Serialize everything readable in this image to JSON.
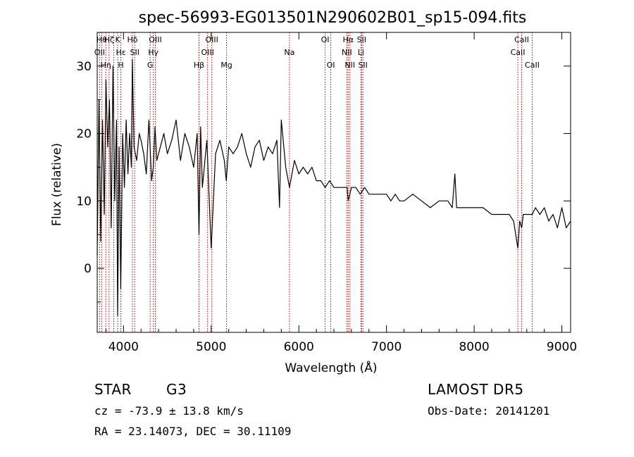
{
  "chart_data": {
    "type": "line",
    "title": "spec-56993-EG013501N290602B01_sp15-094.fits",
    "xlabel": "Wavelength (Å)",
    "ylabel": "Flux (relative)",
    "xlim": [
      3700,
      9100
    ],
    "ylim": [
      -9.5,
      35
    ],
    "xticks": [
      4000,
      5000,
      6000,
      7000,
      8000,
      9000
    ],
    "yticks": [
      0,
      10,
      20,
      30
    ],
    "series": [
      {
        "x": [
          3700,
          3720,
          3740,
          3760,
          3780,
          3800,
          3820,
          3840,
          3860,
          3880,
          3900,
          3920,
          3933,
          3950,
          3968,
          3990,
          4010,
          4030,
          4050,
          4070,
          4090,
          4101,
          4120,
          4150,
          4180,
          4200,
          4230,
          4260,
          4290,
          4320,
          4340,
          4360,
          4380,
          4420,
          4460,
          4500,
          4550,
          4600,
          4650,
          4700,
          4750,
          4800,
          4840,
          4861,
          4880,
          4900,
          4950,
          5000,
          5050,
          5100,
          5150,
          5172,
          5200,
          5250,
          5300,
          5350,
          5400,
          5450,
          5500,
          5550,
          5600,
          5650,
          5700,
          5750,
          5780,
          5800,
          5850,
          5893,
          5950,
          6000,
          6050,
          6100,
          6150,
          6200,
          6250,
          6300,
          6350,
          6400,
          6450,
          6500,
          6550,
          6563,
          6600,
          6650,
          6700,
          6750,
          6800,
          6850,
          6900,
          6950,
          7000,
          7050,
          7100,
          7150,
          7200,
          7300,
          7400,
          7500,
          7600,
          7700,
          7750,
          7780,
          7800,
          7850,
          7900,
          8000,
          8100,
          8200,
          8300,
          8400,
          8450,
          8498,
          8520,
          8542,
          8560,
          8600,
          8662,
          8700,
          8750,
          8800,
          8850,
          8900,
          8950,
          9000,
          9050,
          9100
        ],
        "y": [
          2,
          25,
          4,
          22,
          8,
          28,
          18,
          25,
          6,
          30,
          10,
          22,
          -7,
          18,
          -3,
          20,
          12,
          22,
          14,
          20,
          15,
          31,
          18,
          16,
          20,
          19,
          17,
          14,
          22,
          13,
          15,
          21,
          16,
          18,
          20,
          17,
          19,
          22,
          16,
          20,
          18,
          15,
          20,
          5,
          21,
          12,
          19,
          3,
          17,
          19,
          16,
          13,
          18,
          17,
          18,
          20,
          17,
          15,
          18,
          19,
          16,
          18,
          17,
          19,
          9,
          22,
          15,
          12,
          16,
          14,
          15,
          14,
          15,
          13,
          13,
          12,
          13,
          12,
          12,
          12,
          12,
          10,
          12,
          12,
          11,
          12,
          11,
          11,
          11,
          11,
          11,
          10,
          11,
          10,
          10,
          11,
          10,
          9,
          10,
          10,
          9,
          14,
          9,
          9,
          9,
          9,
          9,
          8,
          8,
          8,
          7,
          3,
          7,
          6,
          8,
          8,
          8,
          9,
          8,
          9,
          7,
          8,
          6,
          9,
          6,
          7
        ]
      }
    ],
    "lines": [
      {
        "wl": 3727,
        "label": "OII",
        "tier": 1
      },
      {
        "wl": 3751,
        "label": "Hθ",
        "tier": 0
      },
      {
        "wl": 3798,
        "label": "Hη",
        "tier": 2
      },
      {
        "wl": 3835,
        "label": "Hζ",
        "tier": 0
      },
      {
        "wl": 3889,
        "label": "",
        "tier": 0
      },
      {
        "wl": 3934,
        "label": "K",
        "tier": 0
      },
      {
        "wl": 3969,
        "label": "H",
        "tier": 2
      },
      {
        "wl": 3970,
        "label": "Hε",
        "tier": 1
      },
      {
        "wl": 4102,
        "label": "Hδ",
        "tier": 0
      },
      {
        "wl": 4128,
        "label": "SII",
        "tier": 1
      },
      {
        "wl": 4304,
        "label": "G",
        "tier": 2
      },
      {
        "wl": 4340,
        "label": "Hγ",
        "tier": 1
      },
      {
        "wl": 4363,
        "label": "OIII",
        "tier": 0
      },
      {
        "wl": 4861,
        "label": "Hβ",
        "tier": 2
      },
      {
        "wl": 4959,
        "label": "OIII",
        "tier": 1
      },
      {
        "wl": 5007,
        "label": "OIII",
        "tier": 0
      },
      {
        "wl": 5175,
        "label": "Mg",
        "tier": 2
      },
      {
        "wl": 5893,
        "label": "Na",
        "tier": 1
      },
      {
        "wl": 6300,
        "label": "OI",
        "tier": 0
      },
      {
        "wl": 6364,
        "label": "OI",
        "tier": 2
      },
      {
        "wl": 6548,
        "label": "NII",
        "tier": 1
      },
      {
        "wl": 6563,
        "label": "Hα",
        "tier": 0
      },
      {
        "wl": 6583,
        "label": "NII",
        "tier": 2
      },
      {
        "wl": 6708,
        "label": "Li",
        "tier": 1
      },
      {
        "wl": 6716,
        "label": "SII",
        "tier": 0
      },
      {
        "wl": 6731,
        "label": "SII",
        "tier": 2
      },
      {
        "wl": 8498,
        "label": "CaII",
        "tier": 1
      },
      {
        "wl": 8542,
        "label": "CaII",
        "tier": 0
      },
      {
        "wl": 8662,
        "label": "CaII",
        "tier": 2
      }
    ],
    "line_color": "#b00000",
    "grid": false,
    "legend": "none"
  },
  "info": {
    "object_type": "STAR",
    "subclass": "G3",
    "survey": "LAMOST DR5",
    "redshift": "cz = -73.9 ± 13.8 km/s",
    "obs_date": "Obs-Date: 20141201",
    "coords": "RA =  23.14073, DEC =  30.11109"
  }
}
